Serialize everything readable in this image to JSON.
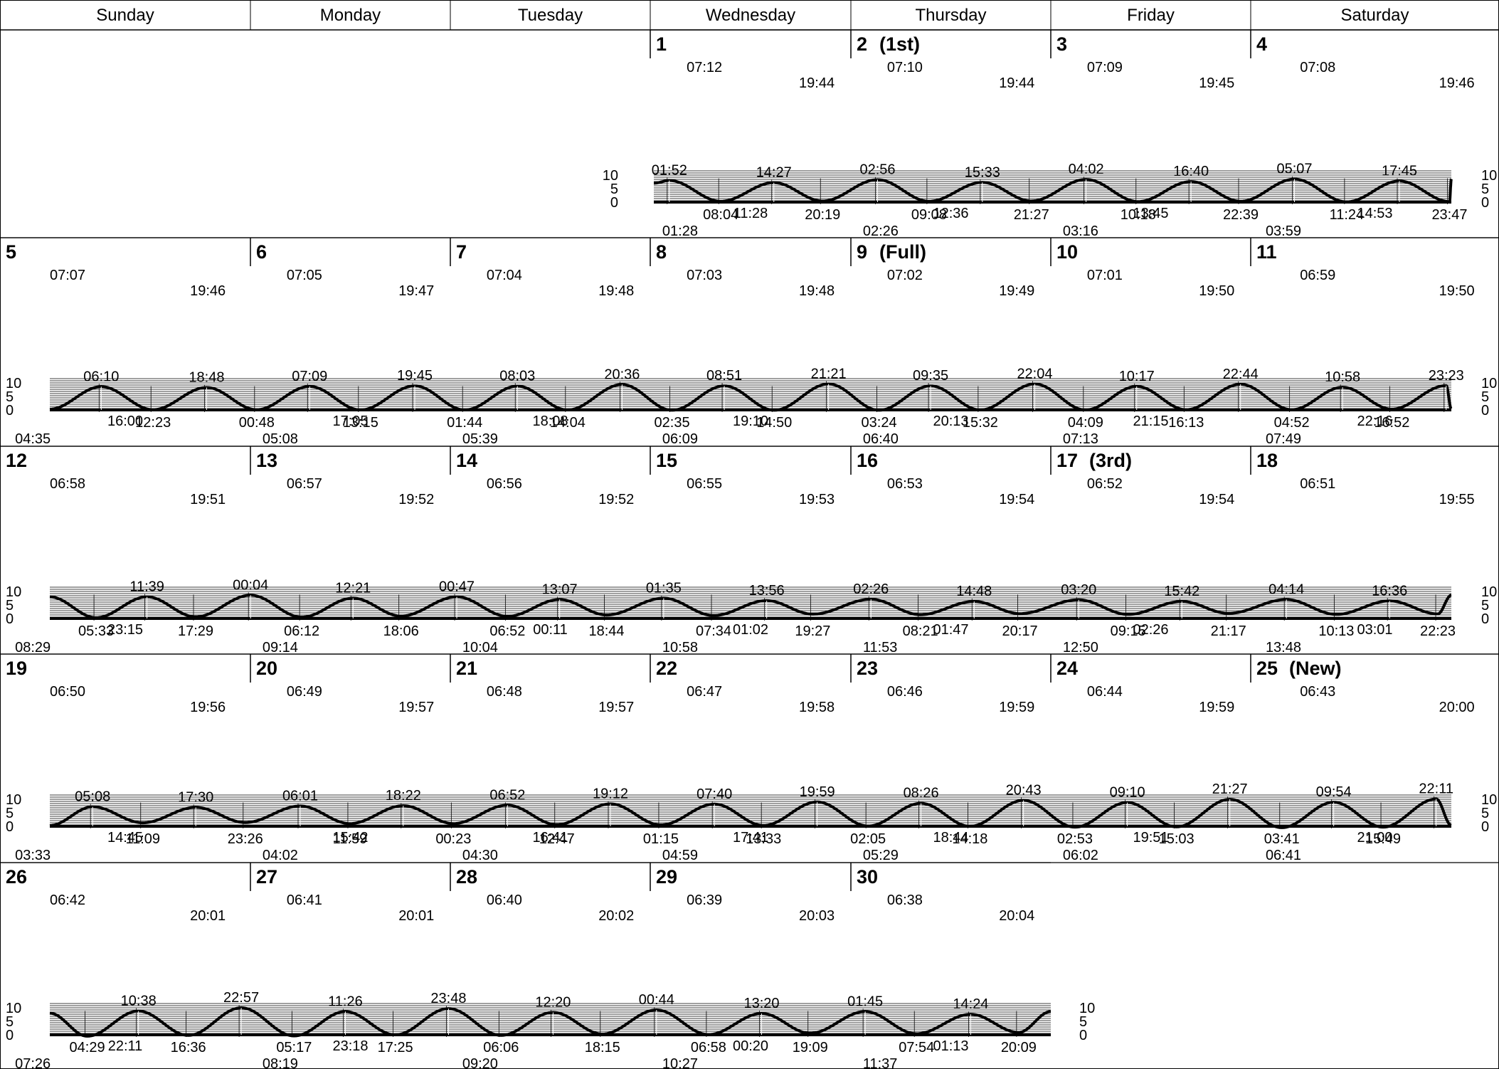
{
  "weekdays": [
    "Sunday",
    "Monday",
    "Tuesday",
    "Wednesday",
    "Thursday",
    "Friday",
    "Saturday"
  ],
  "chart_data": {
    "type": "line",
    "title": "",
    "ylim": [
      0,
      10
    ],
    "y_ticks": [
      "0",
      "5",
      "10"
    ],
    "days": [
      {
        "day": 1,
        "label": "1",
        "phase": "",
        "sunrise": "07:12",
        "sunset": "19:44",
        "moon_a": "01:28",
        "moon_b": "11:28",
        "tides": [
          {
            "t": "01:52",
            "type": "high",
            "h": 8.0
          },
          {
            "t": "08:04",
            "type": "low",
            "h": 0.3
          },
          {
            "t": "14:27",
            "type": "high",
            "h": 7.2
          },
          {
            "t": "20:19",
            "type": "low",
            "h": 0.4
          }
        ]
      },
      {
        "day": 2,
        "label": "2",
        "phase": "(1st)",
        "sunrise": "07:10",
        "sunset": "19:44",
        "moon_a": "02:26",
        "moon_b": "12:36",
        "tides": [
          {
            "t": "02:56",
            "type": "high",
            "h": 8.3
          },
          {
            "t": "09:08",
            "type": "low",
            "h": 0.3
          },
          {
            "t": "15:33",
            "type": "high",
            "h": 7.3
          },
          {
            "t": "21:27",
            "type": "low",
            "h": 0.4
          }
        ]
      },
      {
        "day": 3,
        "label": "3",
        "phase": "",
        "sunrise": "07:09",
        "sunset": "19:45",
        "moon_a": "03:16",
        "moon_b": "13:45",
        "tides": [
          {
            "t": "04:02",
            "type": "high",
            "h": 8.4
          },
          {
            "t": "10:18",
            "type": "low",
            "h": 0.2
          },
          {
            "t": "16:40",
            "type": "high",
            "h": 7.6
          },
          {
            "t": "22:39",
            "type": "low",
            "h": 0.3
          }
        ]
      },
      {
        "day": 4,
        "label": "4",
        "phase": "",
        "sunrise": "07:08",
        "sunset": "19:46",
        "moon_a": "03:59",
        "moon_b": "14:53",
        "tides": [
          {
            "t": "05:07",
            "type": "high",
            "h": 8.5
          },
          {
            "t": "11:24",
            "type": "low",
            "h": 0.1
          },
          {
            "t": "17:45",
            "type": "high",
            "h": 7.8
          },
          {
            "t": "23:47",
            "type": "low",
            "h": 0.2
          }
        ]
      },
      {
        "day": 5,
        "label": "5",
        "phase": "",
        "sunrise": "07:07",
        "sunset": "19:46",
        "moon_a": "04:35",
        "moon_b": "16:00",
        "tides": [
          {
            "t": "06:10",
            "type": "high",
            "h": 8.6
          },
          {
            "t": "12:23",
            "type": "low",
            "h": 0.1
          },
          {
            "t": "18:48",
            "type": "high",
            "h": 8.3
          }
        ]
      },
      {
        "day": 6,
        "label": "6",
        "phase": "",
        "sunrise": "07:05",
        "sunset": "19:47",
        "moon_a": "05:08",
        "moon_b": "17:05",
        "tides": [
          {
            "t": "00:48",
            "type": "low",
            "h": 0.1
          },
          {
            "t": "07:09",
            "type": "high",
            "h": 8.7
          },
          {
            "t": "13:15",
            "type": "low",
            "h": 0.0
          },
          {
            "t": "19:45",
            "type": "high",
            "h": 8.9
          }
        ]
      },
      {
        "day": 7,
        "label": "7",
        "phase": "",
        "sunrise": "07:04",
        "sunset": "19:48",
        "moon_a": "05:39",
        "moon_b": "18:08",
        "tides": [
          {
            "t": "01:44",
            "type": "low",
            "h": 0.0
          },
          {
            "t": "08:03",
            "type": "high",
            "h": 8.8
          },
          {
            "t": "14:04",
            "type": "low",
            "h": 0.0
          },
          {
            "t": "20:36",
            "type": "high",
            "h": 9.4
          }
        ]
      },
      {
        "day": 8,
        "label": "8",
        "phase": "",
        "sunrise": "07:03",
        "sunset": "19:48",
        "moon_a": "06:09",
        "moon_b": "19:10",
        "tides": [
          {
            "t": "02:35",
            "type": "low",
            "h": -0.1
          },
          {
            "t": "08:51",
            "type": "high",
            "h": 8.9
          },
          {
            "t": "14:50",
            "type": "low",
            "h": -0.1
          },
          {
            "t": "21:21",
            "type": "high",
            "h": 9.6
          }
        ]
      },
      {
        "day": 9,
        "label": "9",
        "phase": "(Full)",
        "sunrise": "07:02",
        "sunset": "19:49",
        "moon_a": "06:40",
        "moon_b": "20:13",
        "tides": [
          {
            "t": "03:24",
            "type": "low",
            "h": -0.1
          },
          {
            "t": "09:35",
            "type": "high",
            "h": 8.9
          },
          {
            "t": "15:32",
            "type": "low",
            "h": 0.0
          },
          {
            "t": "22:04",
            "type": "high",
            "h": 9.6
          }
        ]
      },
      {
        "day": 10,
        "label": "10",
        "phase": "",
        "sunrise": "07:01",
        "sunset": "19:50",
        "moon_a": "07:13",
        "moon_b": "21:15",
        "tides": [
          {
            "t": "04:09",
            "type": "low",
            "h": 0.0
          },
          {
            "t": "10:17",
            "type": "high",
            "h": 8.7
          },
          {
            "t": "16:13",
            "type": "low",
            "h": 0.1
          },
          {
            "t": "22:44",
            "type": "high",
            "h": 9.5
          }
        ]
      },
      {
        "day": 11,
        "label": "11",
        "phase": "",
        "sunrise": "06:59",
        "sunset": "19:50",
        "moon_a": "07:49",
        "moon_b": "22:16",
        "tides": [
          {
            "t": "04:52",
            "type": "low",
            "h": 0.1
          },
          {
            "t": "10:58",
            "type": "high",
            "h": 8.4
          },
          {
            "t": "16:52",
            "type": "low",
            "h": 0.3
          },
          {
            "t": "23:23",
            "type": "high",
            "h": 9.0
          }
        ]
      },
      {
        "day": 12,
        "label": "12",
        "phase": "",
        "sunrise": "06:58",
        "sunset": "19:51",
        "moon_a": "08:29",
        "moon_b": "23:15",
        "tides": [
          {
            "t": "05:33",
            "type": "low",
            "h": 0.3
          },
          {
            "t": "11:39",
            "type": "high",
            "h": 8.0
          },
          {
            "t": "17:29",
            "type": "low",
            "h": 0.6
          }
        ]
      },
      {
        "day": 13,
        "label": "13",
        "phase": "",
        "sunrise": "06:57",
        "sunset": "19:52",
        "moon_a": "09:14",
        "moon_b": "",
        "tides": [
          {
            "t": "00:04",
            "type": "high",
            "h": 8.6
          },
          {
            "t": "06:12",
            "type": "low",
            "h": 0.5
          },
          {
            "t": "12:21",
            "type": "high",
            "h": 7.5
          },
          {
            "t": "18:06",
            "type": "low",
            "h": 0.9
          }
        ]
      },
      {
        "day": 14,
        "label": "14",
        "phase": "",
        "sunrise": "06:56",
        "sunset": "19:52",
        "moon_a": "10:04",
        "moon_b": "00:11",
        "tides": [
          {
            "t": "00:47",
            "type": "high",
            "h": 8.0
          },
          {
            "t": "06:52",
            "type": "low",
            "h": 0.8
          },
          {
            "t": "13:07",
            "type": "high",
            "h": 7.0
          },
          {
            "t": "18:44",
            "type": "low",
            "h": 1.3
          }
        ]
      },
      {
        "day": 15,
        "label": "15",
        "phase": "",
        "sunrise": "06:55",
        "sunset": "19:53",
        "moon_a": "10:58",
        "moon_b": "01:02",
        "tides": [
          {
            "t": "01:35",
            "type": "high",
            "h": 7.5
          },
          {
            "t": "07:34",
            "type": "low",
            "h": 1.1
          },
          {
            "t": "13:56",
            "type": "high",
            "h": 6.6
          },
          {
            "t": "19:27",
            "type": "low",
            "h": 1.6
          }
        ]
      },
      {
        "day": 16,
        "label": "16",
        "phase": "",
        "sunrise": "06:53",
        "sunset": "19:54",
        "moon_a": "11:53",
        "moon_b": "01:47",
        "tides": [
          {
            "t": "02:26",
            "type": "high",
            "h": 7.1
          },
          {
            "t": "08:21",
            "type": "low",
            "h": 1.4
          },
          {
            "t": "14:48",
            "type": "high",
            "h": 6.3
          },
          {
            "t": "20:17",
            "type": "low",
            "h": 1.8
          }
        ]
      },
      {
        "day": 17,
        "label": "17",
        "phase": "(3rd)",
        "sunrise": "06:52",
        "sunset": "19:54",
        "moon_a": "12:50",
        "moon_b": "02:26",
        "tides": [
          {
            "t": "03:20",
            "type": "high",
            "h": 6.9
          },
          {
            "t": "09:15",
            "type": "low",
            "h": 1.5
          },
          {
            "t": "15:42",
            "type": "high",
            "h": 6.3
          },
          {
            "t": "21:17",
            "type": "low",
            "h": 1.9
          }
        ]
      },
      {
        "day": 18,
        "label": "18",
        "phase": "",
        "sunrise": "06:51",
        "sunset": "19:55",
        "moon_a": "13:48",
        "moon_b": "03:01",
        "tides": [
          {
            "t": "04:14",
            "type": "high",
            "h": 7.0
          },
          {
            "t": "10:13",
            "type": "low",
            "h": 1.5
          },
          {
            "t": "16:36",
            "type": "high",
            "h": 6.5
          },
          {
            "t": "22:23",
            "type": "low",
            "h": 1.7
          }
        ]
      },
      {
        "day": 19,
        "label": "19",
        "phase": "",
        "sunrise": "06:50",
        "sunset": "19:56",
        "moon_a": "03:33",
        "moon_b": "14:45",
        "tides": [
          {
            "t": "05:08",
            "type": "high",
            "h": 7.2
          },
          {
            "t": "11:09",
            "type": "low",
            "h": 1.3
          },
          {
            "t": "17:30",
            "type": "high",
            "h": 7.0
          },
          {
            "t": "23:26",
            "type": "low",
            "h": 1.4
          }
        ]
      },
      {
        "day": 20,
        "label": "20",
        "phase": "",
        "sunrise": "06:49",
        "sunset": "19:57",
        "moon_a": "04:02",
        "moon_b": "15:42",
        "tides": [
          {
            "t": "06:01",
            "type": "high",
            "h": 7.5
          },
          {
            "t": "11:59",
            "type": "low",
            "h": 1.0
          },
          {
            "t": "18:22",
            "type": "high",
            "h": 7.6
          }
        ]
      },
      {
        "day": 21,
        "label": "21",
        "phase": "",
        "sunrise": "06:48",
        "sunset": "19:57",
        "moon_a": "04:30",
        "moon_b": "16:41",
        "tides": [
          {
            "t": "00:23",
            "type": "low",
            "h": 1.0
          },
          {
            "t": "06:52",
            "type": "high",
            "h": 7.8
          },
          {
            "t": "12:47",
            "type": "low",
            "h": 0.6
          },
          {
            "t": "19:12",
            "type": "high",
            "h": 8.3
          }
        ]
      },
      {
        "day": 22,
        "label": "22",
        "phase": "",
        "sunrise": "06:47",
        "sunset": "19:58",
        "moon_a": "04:59",
        "moon_b": "17:41",
        "tides": [
          {
            "t": "01:15",
            "type": "low",
            "h": 0.5
          },
          {
            "t": "07:40",
            "type": "high",
            "h": 8.2
          },
          {
            "t": "13:33",
            "type": "low",
            "h": 0.3
          },
          {
            "t": "19:59",
            "type": "high",
            "h": 9.0
          }
        ]
      },
      {
        "day": 23,
        "label": "23",
        "phase": "",
        "sunrise": "06:46",
        "sunset": "19:59",
        "moon_a": "05:29",
        "moon_b": "18:44",
        "tides": [
          {
            "t": "02:05",
            "type": "low",
            "h": 0.1
          },
          {
            "t": "08:26",
            "type": "high",
            "h": 8.5
          },
          {
            "t": "14:18",
            "type": "low",
            "h": 0.0
          },
          {
            "t": "20:43",
            "type": "high",
            "h": 9.6
          }
        ]
      },
      {
        "day": 24,
        "label": "24",
        "phase": "",
        "sunrise": "06:44",
        "sunset": "19:59",
        "moon_a": "06:02",
        "moon_b": "19:51",
        "tides": [
          {
            "t": "02:53",
            "type": "low",
            "h": -0.3
          },
          {
            "t": "09:10",
            "type": "high",
            "h": 8.8
          },
          {
            "t": "15:03",
            "type": "low",
            "h": -0.2
          },
          {
            "t": "21:27",
            "type": "high",
            "h": 10.0
          }
        ]
      },
      {
        "day": 25,
        "label": "25",
        "phase": "(New)",
        "sunrise": "06:43",
        "sunset": "20:00",
        "moon_a": "06:41",
        "moon_b": "21:00",
        "tides": [
          {
            "t": "03:41",
            "type": "low",
            "h": -0.5
          },
          {
            "t": "09:54",
            "type": "high",
            "h": 8.9
          },
          {
            "t": "15:49",
            "type": "low",
            "h": -0.3
          },
          {
            "t": "22:11",
            "type": "high",
            "h": 10.1
          }
        ]
      },
      {
        "day": 26,
        "label": "26",
        "phase": "",
        "sunrise": "06:42",
        "sunset": "20:01",
        "moon_a": "07:26",
        "moon_b": "22:11",
        "tides": [
          {
            "t": "04:29",
            "type": "low",
            "h": -0.5
          },
          {
            "t": "10:38",
            "type": "high",
            "h": 8.8
          },
          {
            "t": "16:36",
            "type": "low",
            "h": -0.2
          },
          {
            "t": "22:57",
            "type": "high",
            "h": 10.0
          }
        ]
      },
      {
        "day": 27,
        "label": "27",
        "phase": "",
        "sunrise": "06:41",
        "sunset": "20:01",
        "moon_a": "08:19",
        "moon_b": "23:18",
        "tides": [
          {
            "t": "05:17",
            "type": "low",
            "h": -0.4
          },
          {
            "t": "11:26",
            "type": "high",
            "h": 8.6
          },
          {
            "t": "17:25",
            "type": "low",
            "h": 0.0
          },
          {
            "t": "23:48",
            "type": "high",
            "h": 9.7
          }
        ]
      },
      {
        "day": 28,
        "label": "28",
        "phase": "",
        "sunrise": "06:40",
        "sunset": "20:02",
        "moon_a": "09:20",
        "moon_b": "",
        "tides": [
          {
            "t": "06:06",
            "type": "low",
            "h": -0.2
          },
          {
            "t": "12:20",
            "type": "high",
            "h": 8.3
          },
          {
            "t": "18:15",
            "type": "low",
            "h": 0.3
          }
        ]
      },
      {
        "day": 29,
        "label": "29",
        "phase": "",
        "sunrise": "06:39",
        "sunset": "20:03",
        "moon_a": "10:27",
        "moon_b": "00:20",
        "tides": [
          {
            "t": "00:44",
            "type": "high",
            "h": 9.2
          },
          {
            "t": "06:58",
            "type": "low",
            "h": 0.1
          },
          {
            "t": "13:20",
            "type": "high",
            "h": 7.9
          },
          {
            "t": "19:09",
            "type": "low",
            "h": 0.6
          }
        ]
      },
      {
        "day": 30,
        "label": "30",
        "phase": "",
        "sunrise": "06:38",
        "sunset": "20:04",
        "moon_a": "11:37",
        "moon_b": "01:13",
        "tides": [
          {
            "t": "01:45",
            "type": "high",
            "h": 8.6
          },
          {
            "t": "07:54",
            "type": "low",
            "h": 0.4
          },
          {
            "t": "14:24",
            "type": "high",
            "h": 7.6
          },
          {
            "t": "20:09",
            "type": "low",
            "h": 0.9
          }
        ]
      }
    ],
    "boundary": {
      "start_h": 7.0,
      "end_h": 4.0
    }
  }
}
